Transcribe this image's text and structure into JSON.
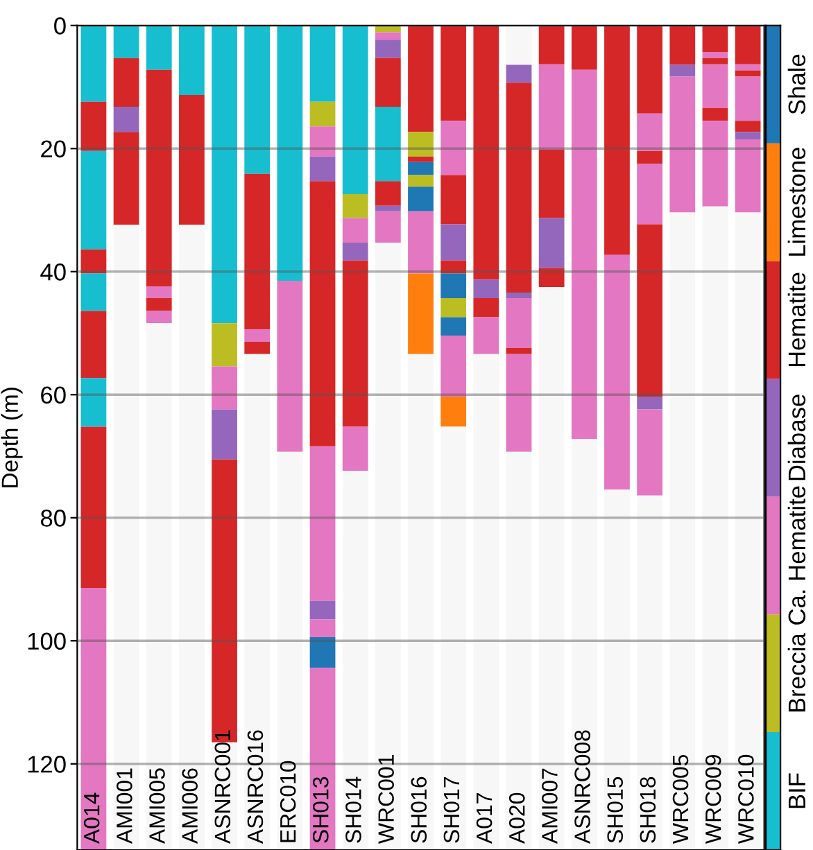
{
  "chart_data": [
    {
      "type": "bar",
      "stacked": true,
      "ylabel": "Depth (m)",
      "ylim": [
        134,
        0
      ],
      "yticks": [
        0,
        20,
        40,
        60,
        80,
        100,
        120
      ],
      "grid": "y",
      "categories": [
        "A014",
        "AMI001",
        "AMI005",
        "AMI006",
        "ASNRC001",
        "ASNRC016",
        "ERC010",
        "SH013",
        "SH014",
        "WRC001",
        "SH016",
        "SH017",
        "A017",
        "A020",
        "AMI007",
        "ASNRC008",
        "SH015",
        "SH018",
        "WRC005",
        "WRC009",
        "WRC010"
      ],
      "series": [
        {
          "values": [
            12.4,
            5.3,
            7.2,
            11.3,
            48.4,
            24.1,
            41.5,
            12.4,
            27.4,
            1.1,
            17.3,
            15.5,
            41.3,
            6.4,
            6.3,
            7.2,
            37.3,
            14.3,
            6.4,
            4.3,
            6.3
          ],
          "colors": [
            "#17becf",
            "#17becf",
            "#17becf",
            "#17becf",
            "#17becf",
            "#17becf",
            "#17becf",
            "#17becf",
            "#17becf",
            "#bcbd22",
            "#d62728",
            "#d62728",
            "#d62728",
            "#f7f7f7",
            "#d62728",
            "#d62728",
            "#d62728",
            "#d62728",
            "#d62728",
            "#d62728",
            "#d62728"
          ]
        },
        {
          "values": [
            8.0,
            7.9,
            35.2,
            21.1,
            7.0,
            25.3,
            27.8,
            4.0,
            3.9,
            1.2,
            4.0,
            8.8,
            3.0,
            2.9,
            13.9,
            60.0,
            38.1,
            6.1,
            1.9,
            1.0,
            1.0
          ],
          "colors": [
            "#d62728",
            "#d62728",
            "#d62728",
            "#d62728",
            "#bcbd22",
            "#d62728",
            "#e377c2",
            "#bcbd22",
            "#bcbd22",
            "#e377c2",
            "#bcbd22",
            "#e377c2",
            "#9467bd",
            "#9467bd",
            "#e377c2",
            "#e377c2",
            "#e377c2",
            "#e377c2",
            "#9467bd",
            "#e377c2",
            "#e377c2"
          ]
        },
        {
          "values": [
            16.0,
            4.1,
            1.9,
            101.6,
            7.0,
            2.0,
            64.7,
            4.9,
            4.0,
            3.0,
            0.9,
            8.0,
            3.1,
            34.1,
            11.1,
            66.8,
            58.6,
            2.1,
            22.1,
            1.0,
            1.0
          ],
          "colors": [
            "#17becf",
            "#9467bd",
            "#e377c2",
            "#f7f7f7",
            "#e377c2",
            "#e377c2",
            "#f7f7f7",
            "#e377c2",
            "#e377c2",
            "#9467bd",
            "#d62728",
            "#d62728",
            "#d62728",
            "#d62728",
            "#d62728",
            "#f7f7f7",
            "#f7f7f7",
            "#d62728",
            "#e377c2",
            "#d62728",
            "#d62728"
          ]
        },
        {
          "values": [
            3.9,
            15.1,
            2.1,
            null,
            8.1,
            2.0,
            null,
            4.0,
            2.9,
            7.9,
            2.1,
            5.9,
            6.0,
            0.9,
            8.1,
            null,
            null,
            9.8,
            103.6,
            7.1,
            7.2
          ],
          "colors": [
            "#d62728",
            "#d62728",
            "#d62728",
            null,
            "#9467bd",
            "#d62728",
            null,
            "#9467bd",
            "#9467bd",
            "#d62728",
            "#1f77b4",
            "#9467bd",
            "#e377c2",
            "#9467bd",
            "#9467bd",
            null,
            null,
            "#e377c2",
            "#f7f7f7",
            "#e377c2",
            "#e377c2"
          ]
        },
        {
          "values": [
            6.1,
            101.6,
            2.0,
            null,
            46.0,
            80.6,
            null,
            43.1,
            27.0,
            12.1,
            1.9,
            2.1,
            80.6,
            8.1,
            3.1,
            null,
            null,
            28.0,
            null,
            2.1,
            1.8
          ],
          "colors": [
            "#17becf",
            "#f7f7f7",
            "#e377c2",
            null,
            "#d62728",
            "#f7f7f7",
            null,
            "#d62728",
            "#d62728",
            "#17becf",
            "#bcbd22",
            "#d62728",
            "#f7f7f7",
            "#e377c2",
            "#d62728",
            null,
            null,
            "#d62728",
            null,
            "#d62728",
            "#d62728"
          ]
        },
        {
          "values": [
            10.9,
            null,
            85.6,
            null,
            17.5,
            null,
            null,
            25.1,
            7.2,
            4.0,
            4.0,
            4.0,
            null,
            1.0,
            91.5,
            null,
            null,
            2.1,
            null,
            13.9,
            1.2
          ],
          "colors": [
            "#d62728",
            null,
            "#f7f7f7",
            null,
            "#f7f7f7",
            null,
            null,
            "#e377c2",
            "#e377c2",
            "#d62728",
            "#1f77b4",
            "#1f77b4",
            null,
            "#d62728",
            "#f7f7f7",
            null,
            null,
            "#9467bd",
            null,
            "#e377c2",
            "#9467bd"
          ]
        },
        {
          "values": [
            7.9,
            null,
            null,
            null,
            null,
            null,
            null,
            3.0,
            61.6,
            0.9,
            10.1,
            3.1,
            null,
            15.9,
            null,
            null,
            null,
            14.0,
            null,
            104.6,
            11.9
          ],
          "colors": [
            "#17becf",
            null,
            null,
            null,
            null,
            null,
            null,
            "#9467bd",
            "#f7f7f7",
            "#9467bd",
            "#e377c2",
            "#bcbd22",
            null,
            "#e377c2",
            null,
            null,
            null,
            "#e377c2",
            null,
            "#f7f7f7",
            "#e377c2"
          ]
        },
        {
          "values": [
            26.2,
            null,
            null,
            null,
            null,
            null,
            null,
            2.9,
            null,
            5.1,
            13.1,
            3.0,
            null,
            64.7,
            null,
            null,
            null,
            57.6,
            null,
            null,
            103.6
          ],
          "colors": [
            "#d62728",
            null,
            null,
            null,
            null,
            null,
            null,
            "#e377c2",
            null,
            "#e377c2",
            "#ff7f0e",
            "#1f77b4",
            null,
            "#f7f7f7",
            null,
            null,
            null,
            "#f7f7f7",
            null,
            null,
            "#f7f7f7"
          ]
        },
        {
          "values": [
            42.6,
            null,
            null,
            null,
            null,
            null,
            null,
            5.0,
            null,
            98.7,
            80.6,
            9.9,
            null,
            null,
            null,
            null,
            null,
            null,
            null,
            null,
            null
          ],
          "colors": [
            "#e377c2",
            null,
            null,
            null,
            null,
            null,
            null,
            "#1f77b4",
            null,
            "#f7f7f7",
            "#f7f7f7",
            "#e377c2",
            null,
            null,
            null,
            null,
            null,
            null,
            null,
            null,
            null
          ]
        },
        {
          "values": [
            null,
            null,
            null,
            null,
            null,
            null,
            null,
            29.6,
            null,
            null,
            null,
            4.9,
            null,
            null,
            null,
            null,
            null,
            null,
            null,
            null,
            null
          ],
          "colors": [
            null,
            null,
            null,
            null,
            null,
            null,
            null,
            "#e377c2",
            null,
            null,
            null,
            "#ff7f0e",
            null,
            null,
            null,
            null,
            null,
            null,
            null,
            null,
            null
          ]
        },
        {
          "values": [
            null,
            null,
            null,
            null,
            null,
            null,
            null,
            null,
            null,
            null,
            null,
            68.8,
            null,
            null,
            null,
            null,
            null,
            null,
            null,
            null,
            null
          ],
          "colors": [
            null,
            null,
            null,
            null,
            null,
            null,
            null,
            null,
            null,
            null,
            null,
            "#f7f7f7",
            null,
            null,
            null,
            null,
            null,
            null,
            null,
            null,
            null
          ]
        }
      ]
    },
    {
      "type": "other",
      "categories": [
        "BIF",
        "Breccia",
        "Ca. Hematite",
        "Diabase",
        "Hematite",
        "Limestone",
        "Shale"
      ],
      "colors": [
        "#17becf",
        "#bcbd22",
        "#e377c2",
        "#9467bd",
        "#d62728",
        "#ff7f0e",
        "#1f77b4"
      ]
    }
  ]
}
